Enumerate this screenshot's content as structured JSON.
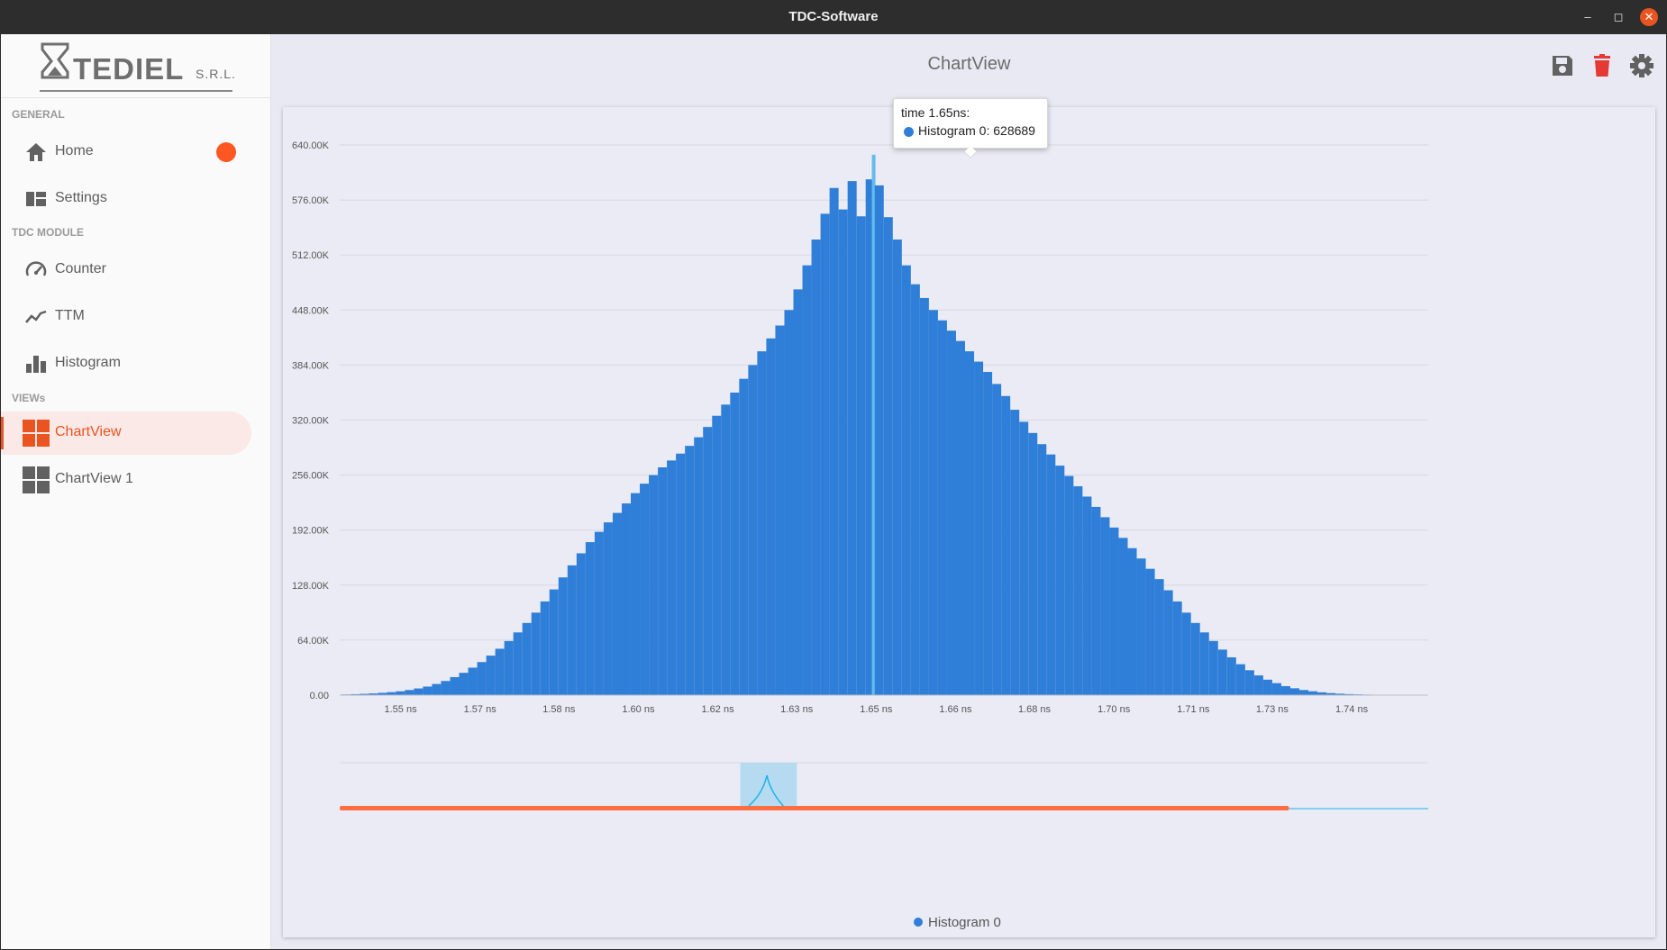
{
  "window": {
    "title": "TDC-Software"
  },
  "logo": {
    "brand": "TEDIEL",
    "suffix": "S.R.L."
  },
  "sidebar": {
    "sections": [
      {
        "label": "GENERAL"
      },
      {
        "label": "TDC MODULE"
      },
      {
        "label": "VIEWs"
      }
    ],
    "items": [
      {
        "label": "Home",
        "icon": "home-icon"
      },
      {
        "label": "Settings",
        "icon": "dashboard-icon"
      },
      {
        "label": "Counter",
        "icon": "speedometer-icon"
      },
      {
        "label": "TTM",
        "icon": "line-graph-icon"
      },
      {
        "label": "Histogram",
        "icon": "bar-chart-icon"
      },
      {
        "label": "ChartView",
        "icon": "grid-icon",
        "active": true
      },
      {
        "label": "ChartView 1",
        "icon": "grid-icon"
      }
    ]
  },
  "main": {
    "title": "ChartView",
    "toolbar": [
      "save-icon",
      "delete-icon",
      "gear-icon"
    ]
  },
  "colors": {
    "accent": "#e95420",
    "series": "#2f7fd8",
    "highlight": "#66bbee",
    "notification": "#ff5722"
  },
  "tooltip": {
    "header": "time 1.65ns:",
    "series_line": "Histogram 0: 628689"
  },
  "legend": {
    "label": "Histogram 0"
  },
  "chart_data": {
    "type": "bar",
    "title": "",
    "xlabel": "",
    "ylabel": "",
    "series": [
      {
        "name": "Histogram 0"
      }
    ],
    "x_ticks": [
      "1.55 ns",
      "1.57 ns",
      "1.58 ns",
      "1.60 ns",
      "1.62 ns",
      "1.63 ns",
      "1.65 ns",
      "1.66 ns",
      "1.68 ns",
      "1.70 ns",
      "1.71 ns",
      "1.73 ns",
      "1.74 ns"
    ],
    "x_tick_values": [
      1.55,
      1.5667,
      1.5833,
      1.6,
      1.6167,
      1.6333,
      1.65,
      1.6667,
      1.6833,
      1.7,
      1.7167,
      1.7333,
      1.75
    ],
    "y_ticks": [
      "0.00",
      "64.00K",
      "128.00K",
      "192.00K",
      "256.00K",
      "320.00K",
      "384.00K",
      "448.00K",
      "512.00K",
      "576.00K",
      "640.00K"
    ],
    "y_tick_values": [
      0,
      64000,
      128000,
      192000,
      256000,
      320000,
      384000,
      448000,
      512000,
      576000,
      640000
    ],
    "xlim": [
      1.5372,
      1.7661
    ],
    "ylim": [
      0,
      640000
    ],
    "highlighted": {
      "x": 1.65,
      "y": 628689
    },
    "x": [
      1.5385,
      1.5404,
      1.5423,
      1.5442,
      1.5461,
      1.548,
      1.5499,
      1.5518,
      1.5537,
      1.5556,
      1.5575,
      1.5594,
      1.5613,
      1.5632,
      1.5651,
      1.567,
      1.5689,
      1.5708,
      1.5727,
      1.5746,
      1.5765,
      1.5784,
      1.5803,
      1.5822,
      1.5841,
      1.586,
      1.5879,
      1.5898,
      1.5917,
      1.5936,
      1.5955,
      1.5974,
      1.5993,
      1.6012,
      1.6031,
      1.605,
      1.6069,
      1.6088,
      1.6107,
      1.6126,
      1.6145,
      1.6164,
      1.6183,
      1.6202,
      1.6221,
      1.624,
      1.6259,
      1.6278,
      1.6297,
      1.6316,
      1.6335,
      1.6354,
      1.6373,
      1.6392,
      1.6411,
      1.643,
      1.6449,
      1.6468,
      1.6487,
      1.65,
      1.6506,
      1.6525,
      1.6544,
      1.6563,
      1.6582,
      1.6601,
      1.662,
      1.6639,
      1.6658,
      1.6677,
      1.6696,
      1.6715,
      1.6734,
      1.6753,
      1.6772,
      1.6791,
      1.681,
      1.6829,
      1.6848,
      1.6867,
      1.6886,
      1.6905,
      1.6924,
      1.6943,
      1.6962,
      1.6981,
      1.7,
      1.7019,
      1.7038,
      1.7057,
      1.7076,
      1.7095,
      1.7114,
      1.7133,
      1.7152,
      1.7171,
      1.719,
      1.7209,
      1.7228,
      1.7247,
      1.7266,
      1.7285,
      1.7304,
      1.7323,
      1.7342,
      1.7361,
      1.738,
      1.7399,
      1.7418,
      1.7437,
      1.7456,
      1.7475,
      1.7494,
      1.7513,
      1.7532,
      1.7551,
      1.757,
      1.7589
    ],
    "values": [
      800,
      1100,
      1500,
      2000,
      2700,
      3500,
      4500,
      6000,
      7800,
      10000,
      13000,
      16500,
      21000,
      26000,
      32000,
      38500,
      46000,
      54000,
      63000,
      73000,
      84000,
      96000,
      109000,
      123000,
      137000,
      151000,
      165000,
      178000,
      190000,
      201000,
      212000,
      223000,
      235000,
      246000,
      256000,
      265000,
      273000,
      281000,
      290000,
      300000,
      312000,
      325000,
      338000,
      352000,
      368000,
      384000,
      400000,
      415000,
      430000,
      448000,
      472000,
      500000,
      530000,
      560000,
      590000,
      565000,
      598000,
      557000,
      600000,
      628689,
      593000,
      556000,
      530000,
      500000,
      478000,
      462000,
      448000,
      436000,
      424000,
      412000,
      400000,
      388000,
      376000,
      362000,
      348000,
      332000,
      318000,
      305000,
      292000,
      280000,
      267000,
      255000,
      243000,
      231000,
      219000,
      207000,
      195000,
      183000,
      171000,
      159000,
      147000,
      135000,
      122000,
      109000,
      96000,
      84000,
      73000,
      63000,
      53000,
      44000,
      36000,
      29000,
      23000,
      18000,
      14000,
      10500,
      8000,
      6000,
      4500,
      3300,
      2400,
      1700,
      1200,
      900,
      650,
      450,
      300,
      200
    ]
  },
  "navigator": {
    "accent": "#ff6e40",
    "window": [
      0.368,
      0.42
    ]
  }
}
